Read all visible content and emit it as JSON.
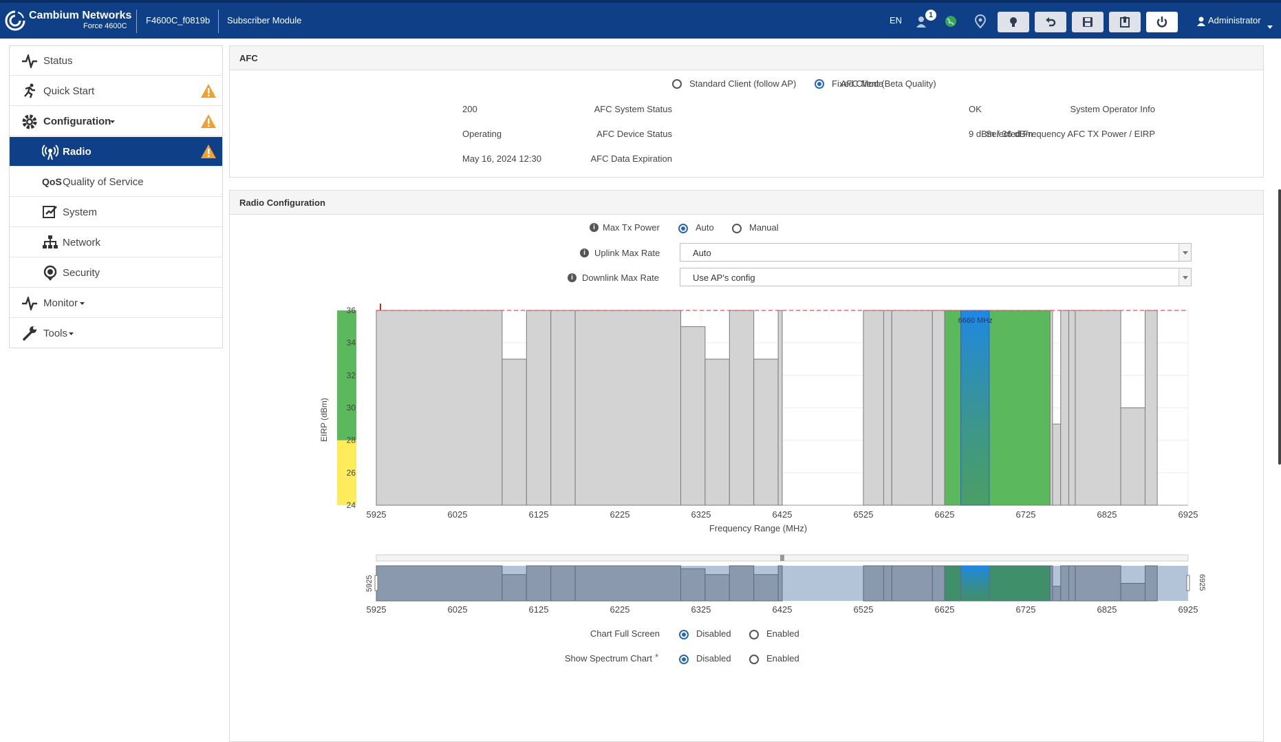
{
  "header": {
    "brand": "Cambium Networks",
    "model": "Force 4600C",
    "device_name": "F4600C_f0819b",
    "device_role": "Subscriber Module",
    "language": "EN",
    "notification_count": "1",
    "user": "Administrator"
  },
  "sidebar": {
    "items": [
      {
        "label": "Status",
        "icon": "pulse-icon"
      },
      {
        "label": "Quick Start",
        "icon": "running-icon",
        "warning": true
      },
      {
        "label": "Configuration",
        "icon": "gear-icon",
        "warning": true
      },
      {
        "label": "Radio",
        "icon": "radio-icon",
        "warning": true,
        "active": true
      },
      {
        "label": "Quality of Service",
        "icon": "qos-icon"
      },
      {
        "label": "System",
        "icon": "system-icon"
      },
      {
        "label": "Network",
        "icon": "network-icon"
      },
      {
        "label": "Security",
        "icon": "security-icon"
      },
      {
        "label": "Monitor",
        "icon": "pulse-icon"
      },
      {
        "label": "Tools",
        "icon": "wrench-icon"
      }
    ]
  },
  "afc": {
    "title": "AFC",
    "mode_label": "AFC Mode",
    "mode_options": [
      "Standard Client (follow AP)",
      "Fixed Client (Beta Quality)"
    ],
    "mode_selected": "Fixed Client (Beta Quality)",
    "system_status_label": "AFC System Status",
    "system_status": "200",
    "device_status_label": "AFC Device Status",
    "device_status": "Operating",
    "data_expiration_label": "AFC Data Expiration",
    "data_expiration": "May 16, 2024 12:30",
    "operator_info_label": "System Operator Info",
    "operator_info": "OK",
    "freq_power_label": "Selected Frequency AFC TX Power / EIRP",
    "freq_power": "9 dBm / 36 dBm"
  },
  "radio": {
    "title": "Radio Configuration",
    "max_tx_label": "Max Tx Power",
    "max_tx_options": [
      "Auto",
      "Manual"
    ],
    "max_tx_selected": "Auto",
    "uplink_label": "Uplink Max Rate",
    "uplink_value": "Auto",
    "downlink_label": "Downlink Max Rate",
    "downlink_value": "Use AP's config",
    "chart_full_label": "Chart Full Screen",
    "chart_full_options": [
      "Disabled",
      "Enabled"
    ],
    "chart_full_selected": "Disabled",
    "spectrum_label": "Show Spectrum Chart",
    "spectrum_options": [
      "Disabled",
      "Enabled"
    ],
    "spectrum_selected": "Disabled",
    "spectrum_asterisk": "*"
  },
  "chart_data": {
    "type": "bar",
    "xlabel": "Frequency Range (MHz)",
    "ylabel": "EIRP (dBm)",
    "xlim": [
      5925,
      6925
    ],
    "ylim": [
      24,
      36
    ],
    "xticks": [
      5925,
      6025,
      6125,
      6225,
      6325,
      6425,
      6525,
      6625,
      6725,
      6825,
      6925
    ],
    "yticks": [
      24,
      26,
      28,
      30,
      32,
      34,
      36
    ],
    "max_eirp_line": 36,
    "selected_frequency_label": "6660 MHz",
    "selected_band": [
      6625,
      6725
    ],
    "selected_channel": [
      6645,
      6680
    ],
    "bars": [
      {
        "from": 5925,
        "to": 6080,
        "eirp": 36
      },
      {
        "from": 6080,
        "to": 6110,
        "eirp": 33
      },
      {
        "from": 6110,
        "to": 6140,
        "eirp": 36
      },
      {
        "from": 6140,
        "to": 6170,
        "eirp": 36
      },
      {
        "from": 6170,
        "to": 6300,
        "eirp": 36
      },
      {
        "from": 6300,
        "to": 6330,
        "eirp": 35
      },
      {
        "from": 6330,
        "to": 6360,
        "eirp": 33
      },
      {
        "from": 6360,
        "to": 6390,
        "eirp": 36
      },
      {
        "from": 6390,
        "to": 6420,
        "eirp": 33
      },
      {
        "from": 6420,
        "to": 6425,
        "eirp": 36
      },
      {
        "from": 6525,
        "to": 6550,
        "eirp": 36
      },
      {
        "from": 6550,
        "to": 6560,
        "eirp": 36
      },
      {
        "from": 6560,
        "to": 6610,
        "eirp": 36
      },
      {
        "from": 6610,
        "to": 6625,
        "eirp": 36
      },
      {
        "from": 6625,
        "to": 6645,
        "eirp": 36
      },
      {
        "from": 6645,
        "to": 6680,
        "eirp": 36
      },
      {
        "from": 6680,
        "to": 6755,
        "eirp": 36
      },
      {
        "from": 6755,
        "to": 6758,
        "eirp": 36
      },
      {
        "from": 6758,
        "to": 6768,
        "eirp": 29
      },
      {
        "from": 6768,
        "to": 6778,
        "eirp": 36
      },
      {
        "from": 6778,
        "to": 6786,
        "eirp": 36
      },
      {
        "from": 6786,
        "to": 6842,
        "eirp": 36
      },
      {
        "from": 6842,
        "to": 6872,
        "eirp": 30
      },
      {
        "from": 6872,
        "to": 6887,
        "eirp": 36
      }
    ],
    "navigator_range": [
      5925,
      6925
    ],
    "eirp_color_bands": [
      {
        "from": 24,
        "to": 28,
        "color": "#ffec5c"
      },
      {
        "from": 28,
        "to": 36,
        "color": "#5cb85c"
      }
    ]
  },
  "colors": {
    "header_bg": "#0f3f86",
    "accent": "#2a67b3",
    "warning": "#f0a030",
    "bar_gray": "#d3d3d3",
    "bar_green": "#5cb85c",
    "channel_blue": "#1e88e5"
  }
}
